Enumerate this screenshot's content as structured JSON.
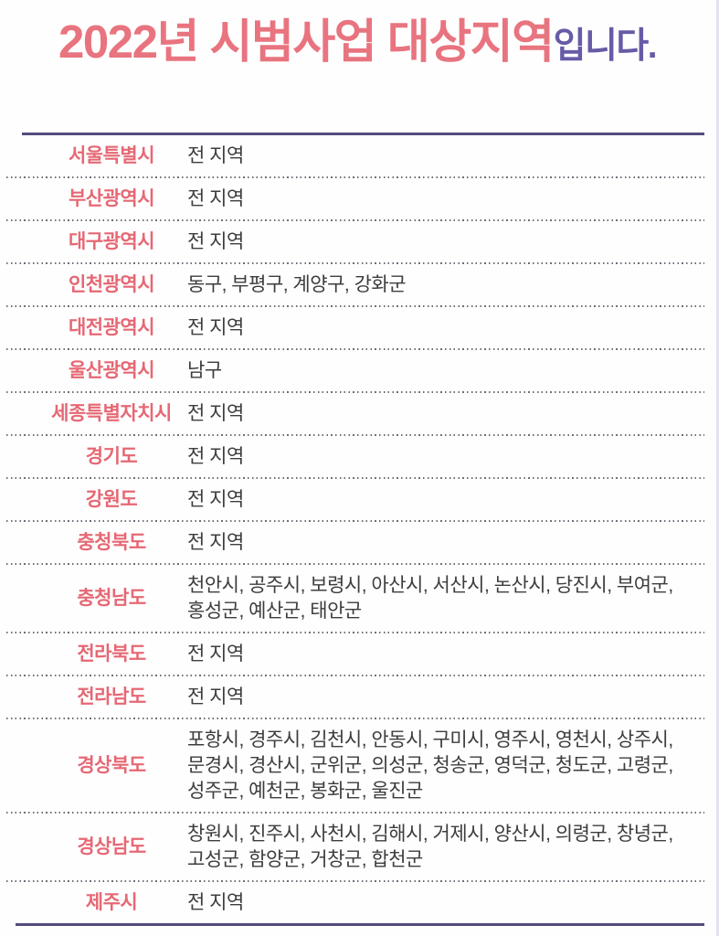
{
  "title": {
    "main": "2022년 시범사업 대상지역",
    "suffix": "입니다."
  },
  "colors": {
    "title_pink": "#e8747f",
    "suffix_purple": "#675ba7",
    "label_pink": "#e56874",
    "value_gray": "#3d3d3f",
    "solid_line": "#514c7c",
    "dotted_line": "#6e6e78"
  },
  "table": {
    "rows": [
      {
        "region": "서울특별시",
        "area": "전 지역"
      },
      {
        "region": "부산광역시",
        "area": "전 지역"
      },
      {
        "region": "대구광역시",
        "area": "전 지역"
      },
      {
        "region": "인천광역시",
        "area": "동구, 부평구, 계양구, 강화군"
      },
      {
        "region": "대전광역시",
        "area": "전 지역"
      },
      {
        "region": "울산광역시",
        "area": "남구"
      },
      {
        "region": "세종특별자치시",
        "area": "전 지역"
      },
      {
        "region": "경기도",
        "area": "전 지역"
      },
      {
        "region": "강원도",
        "area": "전 지역"
      },
      {
        "region": "충청북도",
        "area": "전 지역"
      },
      {
        "region": "충청남도",
        "area": "천안시, 공주시, 보령시, 아산시, 서산시, 논산시, 당진시, 부여군,\n홍성군, 예산군, 태안군"
      },
      {
        "region": "전라북도",
        "area": "전 지역"
      },
      {
        "region": "전라남도",
        "area": "전 지역"
      },
      {
        "region": "경상북도",
        "area": "포항시, 경주시, 김천시, 안동시, 구미시, 영주시, 영천시, 상주시,\n문경시, 경산시, 군위군, 의성군, 청송군, 영덕군, 청도군, 고령군,\n성주군, 예천군, 봉화군, 울진군"
      },
      {
        "region": "경상남도",
        "area": "창원시, 진주시, 사천시, 김해시, 거제시, 양산시, 의령군, 창녕군,\n고성군, 함양군, 거창군, 합천군"
      },
      {
        "region": "제주시",
        "area": "전 지역"
      }
    ]
  }
}
